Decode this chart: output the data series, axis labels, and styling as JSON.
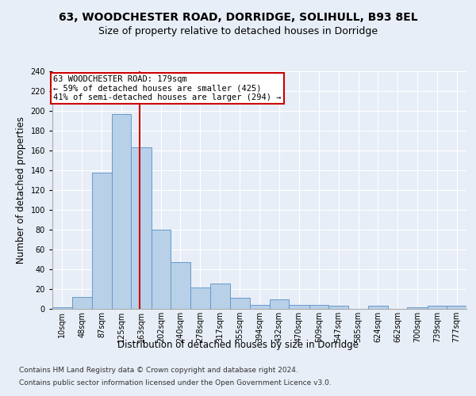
{
  "title1": "63, WOODCHESTER ROAD, DORRIDGE, SOLIHULL, B93 8EL",
  "title2": "Size of property relative to detached houses in Dorridge",
  "xlabel": "Distribution of detached houses by size in Dorridge",
  "ylabel": "Number of detached properties",
  "bar_labels": [
    "10sqm",
    "48sqm",
    "87sqm",
    "125sqm",
    "163sqm",
    "202sqm",
    "240sqm",
    "278sqm",
    "317sqm",
    "355sqm",
    "394sqm",
    "432sqm",
    "470sqm",
    "509sqm",
    "547sqm",
    "585sqm",
    "624sqm",
    "662sqm",
    "700sqm",
    "739sqm",
    "777sqm"
  ],
  "bar_values": [
    2,
    12,
    138,
    197,
    163,
    80,
    47,
    22,
    26,
    11,
    4,
    10,
    4,
    4,
    3,
    0,
    3,
    0,
    2,
    3,
    3
  ],
  "bar_color": "#b8d0e8",
  "bar_edgecolor": "#6699cc",
  "bin_edges": [
    10,
    48,
    87,
    125,
    163,
    202,
    240,
    278,
    317,
    355,
    394,
    432,
    470,
    509,
    547,
    585,
    624,
    662,
    700,
    739,
    777,
    815
  ],
  "vline_x": 179,
  "vline_color": "#cc0000",
  "annotation_text_line1": "63 WOODCHESTER ROAD: 179sqm",
  "annotation_text_line2": "← 59% of detached houses are smaller (425)",
  "annotation_text_line3": "41% of semi-detached houses are larger (294) →",
  "annotation_box_color": "#ffffff",
  "annotation_box_edgecolor": "#cc0000",
  "ylim": [
    0,
    240
  ],
  "yticks": [
    0,
    20,
    40,
    60,
    80,
    100,
    120,
    140,
    160,
    180,
    200,
    220,
    240
  ],
  "background_color": "#e8eef7",
  "plot_bg_color": "#e8eef7",
  "footer_line1": "Contains HM Land Registry data © Crown copyright and database right 2024.",
  "footer_line2": "Contains public sector information licensed under the Open Government Licence v3.0.",
  "title1_fontsize": 10,
  "title2_fontsize": 9,
  "xlabel_fontsize": 8.5,
  "ylabel_fontsize": 8.5,
  "tick_fontsize": 7,
  "annotation_fontsize": 7.5,
  "footer_fontsize": 6.5
}
